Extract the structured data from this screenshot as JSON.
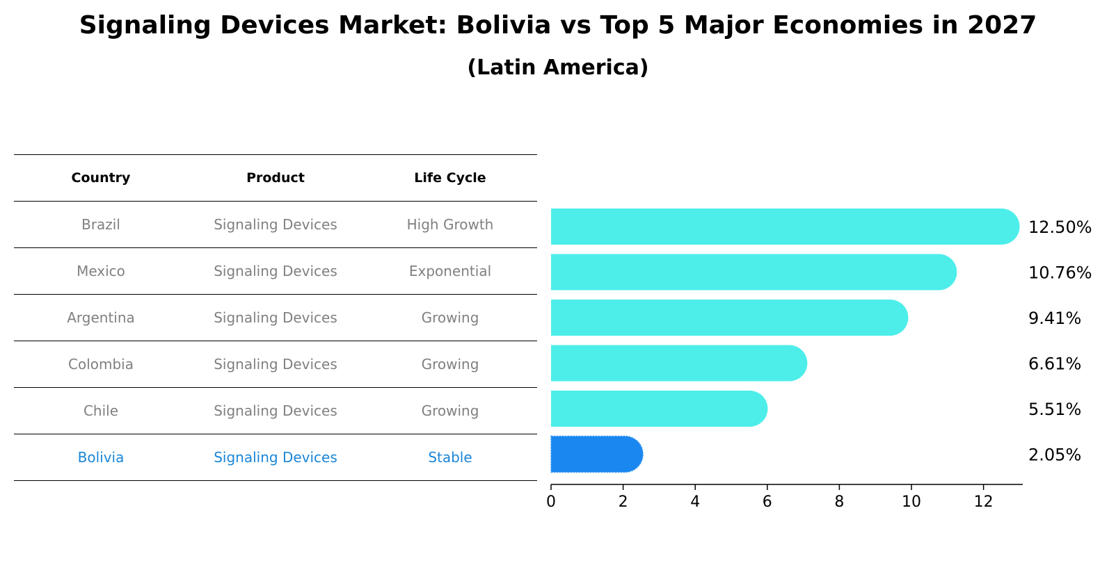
{
  "chart_data": {
    "type": "bar",
    "title": "Signaling Devices Market: Bolivia vs Top 5 Major Economies in 2027",
    "subtitle": "(Latin America)",
    "categories": [
      "Brazil",
      "Mexico",
      "Argentina",
      "Colombia",
      "Chile",
      "Bolivia"
    ],
    "values": [
      12.5,
      10.76,
      9.41,
      6.61,
      5.51,
      2.05
    ],
    "value_labels": [
      "12.50%",
      "10.76%",
      "9.41%",
      "6.61%",
      "5.51%",
      "2.05%"
    ],
    "highlight": "Bolivia",
    "xlim": [
      0,
      13.1
    ],
    "xticks": [
      0,
      2,
      4,
      6,
      8,
      10,
      12
    ],
    "colors": {
      "bar": "#4deeea",
      "highlight": "#1a86f0",
      "highlight_text": "#1a86d8",
      "muted_text": "#808080"
    }
  },
  "table": {
    "headers": [
      "Country",
      "Product",
      "Life Cycle"
    ],
    "rows": [
      [
        "Brazil",
        "Signaling Devices",
        "High Growth"
      ],
      [
        "Mexico",
        "Signaling Devices",
        "Exponential"
      ],
      [
        "Argentina",
        "Signaling Devices",
        "Growing"
      ],
      [
        "Colombia",
        "Signaling Devices",
        "Growing"
      ],
      [
        "Chile",
        "Signaling Devices",
        "Growing"
      ],
      [
        "Bolivia",
        "Signaling Devices",
        "Stable"
      ]
    ]
  }
}
